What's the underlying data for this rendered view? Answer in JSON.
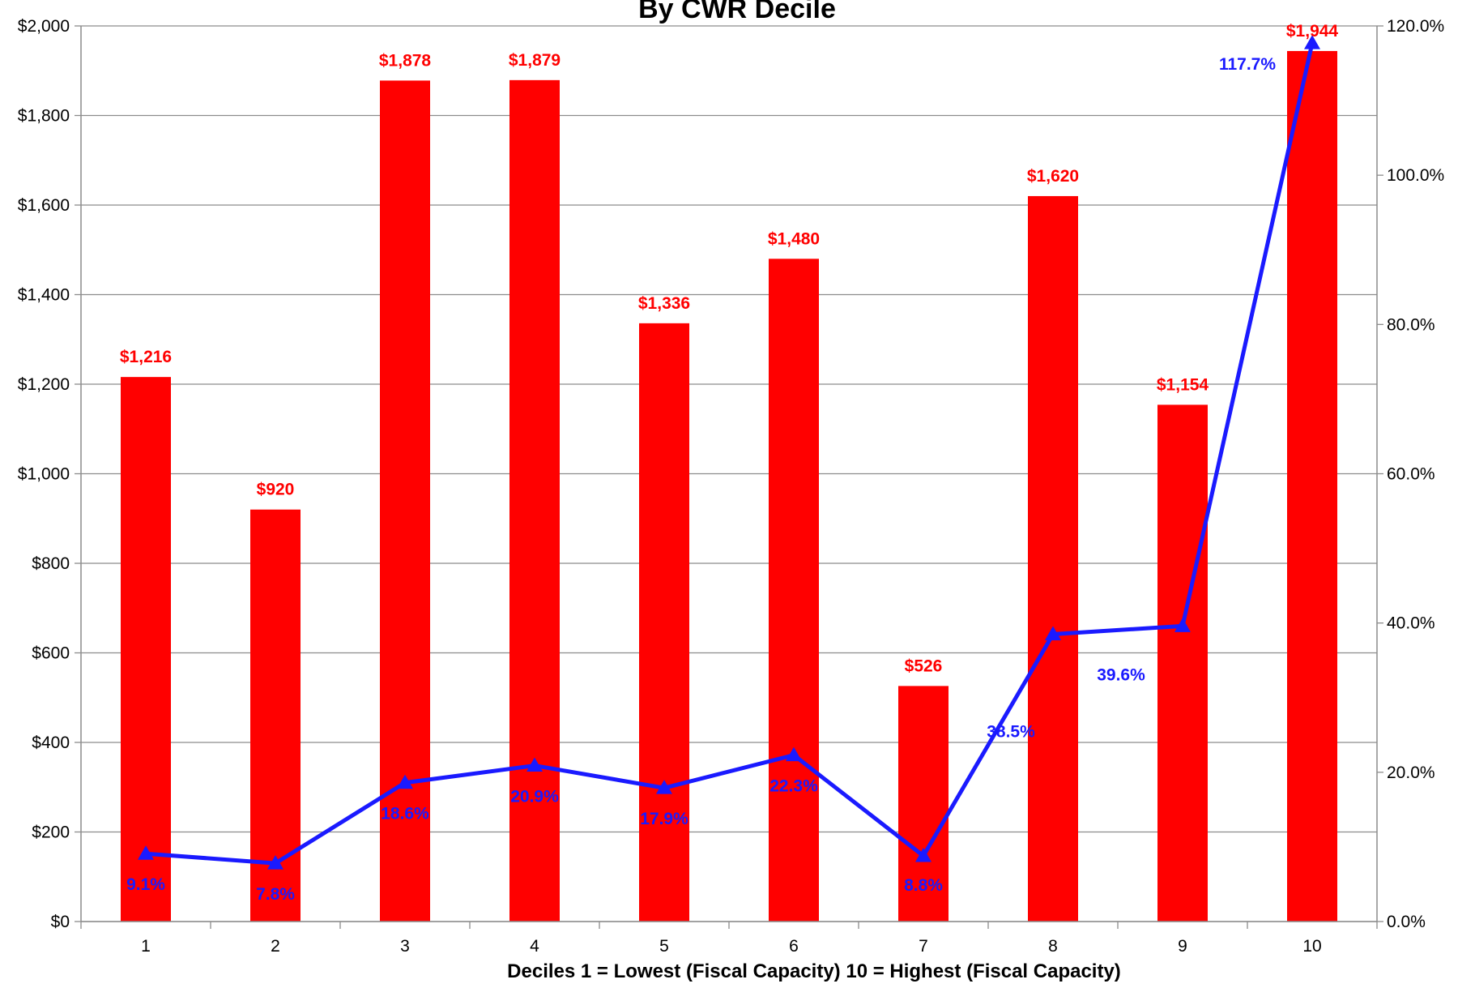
{
  "chart_data": {
    "type": "bar",
    "title": "By CWR Decile",
    "xlabel": "Deciles  1 = Lowest (Fiscal Capacity)  10 = Highest (Fiscal Capacity)",
    "ylabel": "",
    "y2label": "",
    "categories": [
      "1",
      "2",
      "3",
      "4",
      "5",
      "6",
      "7",
      "8",
      "9",
      "10"
    ],
    "ylim": [
      0,
      2000
    ],
    "y_ticks": [
      "$0",
      "$200",
      "$400",
      "$600",
      "$800",
      "$1,000",
      "$1,200",
      "$1,400",
      "$1,600",
      "$1,800",
      "$2,000"
    ],
    "y2lim": [
      0,
      120
    ],
    "y2_ticks": [
      "0.0%",
      "20.0%",
      "40.0%",
      "60.0%",
      "80.0%",
      "100.0%",
      "120.0%"
    ],
    "grid": true,
    "legend": "none",
    "series": [
      {
        "type": "bar",
        "axis": "left",
        "color": "#ff0000",
        "values": [
          1216,
          920,
          1878,
          1879,
          1336,
          1480,
          526,
          1620,
          1154,
          1944
        ],
        "labels": [
          "$1,216",
          "$920",
          "$1,878",
          "$1,879",
          "$1,336",
          "$1,480",
          "$526",
          "$1,620",
          "$1,154",
          "$1,944"
        ]
      },
      {
        "type": "line",
        "axis": "right",
        "marker": "triangle",
        "color": "#1a1aff",
        "values": [
          9.1,
          7.8,
          18.6,
          20.9,
          17.9,
          22.3,
          8.8,
          38.5,
          39.6,
          117.7
        ],
        "labels": [
          "9.1%",
          "7.8%",
          "18.6%",
          "20.9%",
          "17.9%",
          "22.3%",
          "8.8%",
          "38.5%",
          "39.6%",
          "117.7%"
        ]
      }
    ]
  }
}
